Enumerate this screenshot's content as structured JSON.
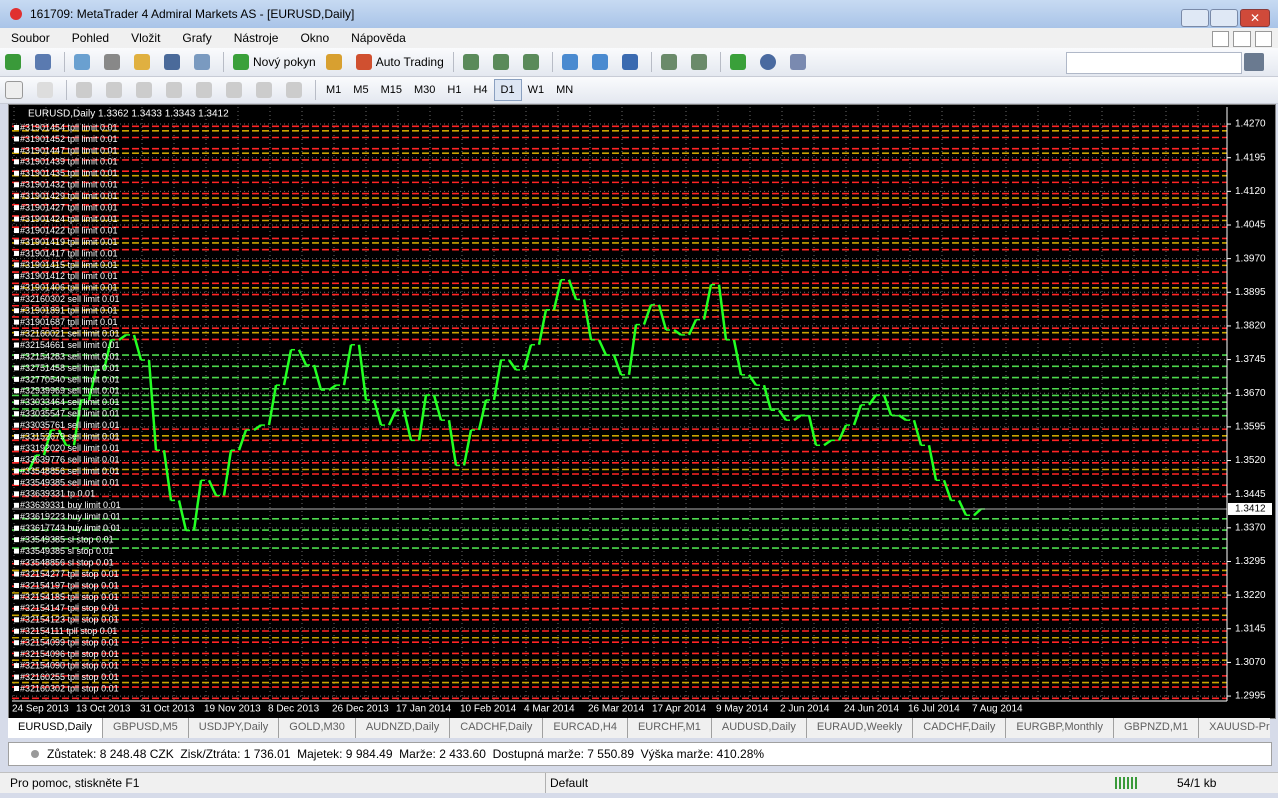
{
  "window": {
    "title": "161709: MetaTrader 4 Admiral Markets AS - [EURUSD,Daily]"
  },
  "menu": [
    "Soubor",
    "Pohled",
    "Vložit",
    "Grafy",
    "Nástroje",
    "Okno",
    "Nápověda"
  ],
  "toolbar": {
    "new_order": "Nový pokyn",
    "auto_trading": "Auto Trading",
    "timeframes": [
      "M1",
      "M5",
      "M15",
      "M30",
      "H1",
      "H4",
      "D1",
      "W1",
      "MN"
    ]
  },
  "chart": {
    "symbol": "EURUSD,Daily",
    "ohlc": "1.3362 1.3433 1.3343 1.3412",
    "ylim": [
      1.2984,
      1.4308
    ],
    "yticks": [
      {
        "value": 1.427,
        "label": "1.4270"
      },
      1.4195,
      {
        "value": 1.412,
        "label": "1.4120"
      },
      1.4045,
      {
        "value": 1.397,
        "label": "1.3970"
      },
      1.3895,
      {
        "value": 1.382,
        "label": "1.3820"
      },
      1.3745,
      {
        "value": 1.367,
        "label": "1.3670"
      },
      1.3595,
      {
        "value": 1.352,
        "label": "1.3520"
      },
      1.3445,
      {
        "value": 1.337,
        "label": "1.3370"
      },
      1.3295,
      {
        "value": 1.322,
        "label": "1.3220"
      },
      1.3145,
      {
        "value": 1.307,
        "label": "1.3070"
      },
      1.2995
    ],
    "grid": true,
    "current_price": 1.3412,
    "bar_color": "#22ff22",
    "dates": [
      "24 Sep 2013",
      "13 Oct 2013",
      "31 Oct 2013",
      "19 Nov 2013",
      "8 Dec 2013",
      "26 Dec 2013",
      "17 Jan 2014",
      "10 Feb 2014",
      "4 Mar 2014",
      "26 Mar 2014",
      "17 Apr 2014",
      "9 May 2014",
      "2 Jun 2014",
      "24 Jun 2014",
      "16 Jul 2014",
      "7 Aug 2014"
    ],
    "closes": [
      1.3498,
      1.3532,
      1.3588,
      1.3554,
      1.3655,
      1.3722,
      1.3789,
      1.38,
      1.3744,
      1.3543,
      1.3431,
      1.3364,
      1.3476,
      1.3442,
      1.3543,
      1.3588,
      1.3599,
      1.3688,
      1.3767,
      1.3733,
      1.3677,
      1.3688,
      1.3778,
      1.3655,
      1.3599,
      1.3632,
      1.3565,
      1.3666,
      1.361,
      1.3509,
      1.3588,
      1.3655,
      1.3744,
      1.3722,
      1.3778,
      1.3856,
      1.3923,
      1.3879,
      1.3789,
      1.3755,
      1.3711,
      1.3823,
      1.3867,
      1.3811,
      1.38,
      1.3834,
      1.3912,
      1.3789,
      1.3711,
      1.3688,
      1.3632,
      1.361,
      1.3621,
      1.3554,
      1.3565,
      1.3599,
      1.3644,
      1.3666,
      1.3621,
      1.361,
      1.3554,
      1.3476,
      1.3431,
      1.3398,
      1.3412
    ],
    "levels": {
      "red": [
        1.4265,
        1.424,
        1.4215,
        1.419,
        1.4165,
        1.414,
        1.4115,
        1.409,
        1.4065,
        1.404,
        1.4015,
        1.399,
        1.3965,
        1.394,
        1.3915,
        1.389,
        1.3865,
        1.384,
        1.3815,
        1.379,
        1.359,
        1.3565,
        1.354,
        1.3515,
        1.349,
        1.3465,
        1.344,
        1.329,
        1.3265,
        1.324,
        1.3215,
        1.319,
        1.3165,
        1.314,
        1.3115,
        1.309,
        1.3065,
        1.304,
        1.3015,
        1.299
      ],
      "yellow": [
        1.4255,
        1.4205,
        1.4155,
        1.4105,
        1.4055,
        1.4005,
        1.3955,
        1.3905,
        1.3855,
        1.3805,
        1.3575,
        1.35,
        1.3275,
        1.3225,
        1.3175,
        1.3125,
        1.3075,
        1.3025
      ],
      "green": [
        1.3755,
        1.373,
        1.3705,
        1.368,
        1.3665,
        1.365,
        1.3635,
        1.362,
        1.339,
        1.3365,
        1.3345,
        1.3325
      ]
    },
    "level_colors": {
      "red": "#ff2424",
      "yellow": "#c8a400",
      "green": "#4cd84c"
    },
    "order_labels": [
      "#31901454 tpll limit 0.01",
      "#31901452 tpll limit 0.01",
      "#31901447 tpll limit 0.01",
      "#31901439 tpll limit 0.01",
      "#31901435 tpll limit 0.01",
      "#31901432 tpll limit 0.01",
      "#31901429 tpll limit 0.01",
      "#31901427 tpll limit 0.01",
      "#31901424 tpll limit 0.01",
      "#31901422 tpll limit 0.01",
      "#31901419 tpll limit 0.01",
      "#31901417 tpll limit 0.01",
      "#31901415 tpll limit 0.01",
      "#31901412 tpll limit 0.01",
      "#31901406 tpll limit 0.01",
      "#32160302 sell limit 0.01",
      "#31901891 tpll limit 0.01",
      "#31901687 tpll limit 0.01",
      "#32160021 sell limit 0.01",
      "#32154661 sell limit 0.01",
      "#32154283 sell limit 0.01",
      "#32751458 sell limit 0.01",
      "#32770540 sell limit 0.01",
      "#32939969 sell limit 0.01",
      "#33033464 sell limit 0.01",
      "#33035547 sell limit 0.01",
      "#33035761 sell limit 0.01",
      "#33152679 sell limit 0.01",
      "#33192020 sell limit 0.01",
      "#33639776 sell limit 0.01",
      "#33548856 sell limit 0.01",
      "#33549385 sell limit 0.01",
      "#33639331 tp 0.01",
      "#33639331 buy limit 0.01",
      "#33619223 buy limit 0.01",
      "#33617743 buy limit 0.01",
      "#33549385 sl stop 0.01",
      "#33549385 sl stop 0.01",
      "#33548856 sl stop 0.01",
      "#32154277 tpll stop 0.01",
      "#32154197 tpll stop 0.01",
      "#32154185 tpll stop 0.01",
      "#32154147 tpll stop 0.01",
      "#32154123 tpll stop 0.01",
      "#32154111 tpll stop 0.01",
      "#32154099 tpll stop 0.01",
      "#32154096 tpll stop 0.01",
      "#32154090 tpll stop 0.01",
      "#32160255 tpll stop 0.01",
      "#32160302 tpll stop 0.01"
    ]
  },
  "tabs": [
    "EURUSD,Daily",
    "GBPUSD,M5",
    "USDJPY,Daily",
    "GOLD,M30",
    "AUDNZD,Daily",
    "CADCHF,Daily",
    "EURCAD,H4",
    "EURCHF,M1",
    "AUDUSD,Daily",
    "EURAUD,Weekly",
    "CADCHF,Daily",
    "EURGBP,Monthly",
    "GBPNZD,M1",
    "XAUUSD-Pro,M"
  ],
  "account": "Zůstatek: 8 248.48 CZK  Zisk/Ztráta: 1 736.01  Majetek: 9 984.49  Marže: 2 433.60  Dostupná marže: 7 550.89  Výška marže: 410.28%",
  "status": {
    "help": "Pro pomoc, stiskněte F1",
    "profile": "Default",
    "traffic": "54/1 kb"
  }
}
